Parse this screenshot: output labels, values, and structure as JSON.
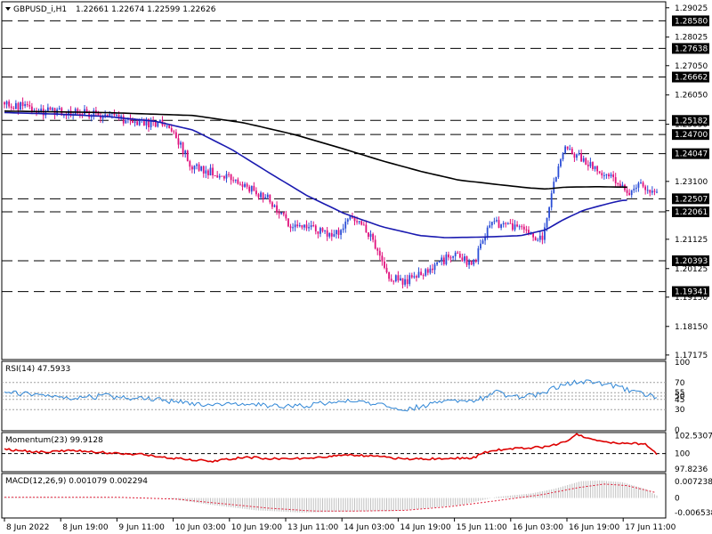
{
  "header": {
    "symbol": "GBPUSD_i,H1",
    "ohlc": "1.22661 1.22674 1.22599 1.22626"
  },
  "colors": {
    "bull": "#2a4dd6",
    "bear": "#e0107c",
    "ma_fast": "#1a1ab0",
    "ma_slow": "#000000",
    "rsi": "#2f86d6",
    "momentum": "#dd0000",
    "macd": "#e0203a",
    "hist": "#c0c0c0"
  },
  "chart_data": [
    {
      "type": "candlestick",
      "panel": "price",
      "ylim": [
        1.1705,
        1.292
      ],
      "y_ticks": [
        "1.29025",
        "1.28025",
        "1.27050",
        "1.26050",
        "1.25050",
        "1.23100",
        "1.22100",
        "1.21125",
        "1.20125",
        "1.19150",
        "1.18150",
        "1.17175"
      ],
      "levels": [
        "1.28580",
        "1.27638",
        "1.26662",
        "1.25182",
        "1.24700",
        "1.24047",
        "1.22507",
        "1.22061",
        "1.20393",
        "1.19341"
      ],
      "ma_fast": [
        [
          0,
          1.2545
        ],
        [
          20,
          1.254
        ],
        [
          40,
          1.2532
        ],
        [
          60,
          1.2515
        ],
        [
          75,
          1.2485
        ],
        [
          90,
          1.242
        ],
        [
          105,
          1.234
        ],
        [
          120,
          1.2262
        ],
        [
          135,
          1.22
        ],
        [
          150,
          1.2155
        ],
        [
          165,
          1.2125
        ],
        [
          175,
          1.2118
        ],
        [
          190,
          1.212
        ],
        [
          205,
          1.2125
        ],
        [
          215,
          1.2145
        ],
        [
          222,
          1.218
        ],
        [
          230,
          1.2212
        ],
        [
          240,
          1.2235
        ],
        [
          245,
          1.2245
        ],
        [
          249,
          1.2247
        ]
      ],
      "ma_slow": [
        [
          0,
          1.255
        ],
        [
          40,
          1.2545
        ],
        [
          75,
          1.2535
        ],
        [
          95,
          1.251
        ],
        [
          115,
          1.247
        ],
        [
          135,
          1.242
        ],
        [
          150,
          1.238
        ],
        [
          165,
          1.2345
        ],
        [
          180,
          1.2315
        ],
        [
          195,
          1.23
        ],
        [
          208,
          1.2288
        ],
        [
          215,
          1.2284
        ],
        [
          222,
          1.229
        ],
        [
          235,
          1.2292
        ],
        [
          249,
          1.229
        ]
      ],
      "anchors": [
        [
          0,
          1.258
        ],
        [
          15,
          1.255
        ],
        [
          40,
          1.254
        ],
        [
          60,
          1.251
        ],
        [
          72,
          1.2505
        ],
        [
          82,
          1.236
        ],
        [
          100,
          1.232
        ],
        [
          115,
          1.225
        ],
        [
          125,
          1.216
        ],
        [
          145,
          1.213
        ],
        [
          152,
          1.219
        ],
        [
          158,
          1.215
        ],
        [
          168,
          1.198
        ],
        [
          175,
          1.197
        ],
        [
          187,
          1.201
        ],
        [
          195,
          1.206
        ],
        [
          205,
          1.203
        ],
        [
          212,
          1.217
        ],
        [
          225,
          1.215
        ],
        [
          235,
          1.211
        ],
        [
          240,
          1.231
        ],
        [
          245,
          1.243
        ],
        [
          255,
          1.237
        ],
        [
          265,
          1.232
        ],
        [
          272,
          1.227
        ],
        [
          279,
          1.23
        ],
        [
          285,
          1.2263
        ]
      ],
      "x_ticks": [
        "8 Jun 2022",
        "8 Jun 19:00",
        "9 Jun 11:00",
        "10 Jun 03:00",
        "10 Jun 19:00",
        "13 Jun 11:00",
        "14 Jun 03:00",
        "14 Jun 19:00",
        "15 Jun 11:00",
        "16 Jun 03:00",
        "16 Jun 19:00",
        "17 Jun 11:00"
      ]
    },
    {
      "type": "line",
      "panel": "rsi",
      "title": "RSI(14) 47.5933",
      "ylim": [
        0,
        100
      ],
      "y_ticks": [
        "100",
        "70",
        "55",
        "50",
        "45",
        "30",
        "0"
      ],
      "levels": [
        70,
        55,
        50,
        45,
        30
      ],
      "anchors": [
        [
          0,
          55
        ],
        [
          15,
          52
        ],
        [
          30,
          48
        ],
        [
          45,
          50
        ],
        [
          60,
          46
        ],
        [
          75,
          42
        ],
        [
          90,
          35
        ],
        [
          105,
          40
        ],
        [
          120,
          34
        ],
        [
          135,
          37
        ],
        [
          150,
          44
        ],
        [
          160,
          40
        ],
        [
          175,
          30
        ],
        [
          190,
          40
        ],
        [
          205,
          42
        ],
        [
          215,
          55
        ],
        [
          225,
          48
        ],
        [
          235,
          54
        ],
        [
          245,
          68
        ],
        [
          255,
          73
        ],
        [
          265,
          65
        ],
        [
          275,
          57
        ],
        [
          285,
          47.6
        ]
      ]
    },
    {
      "type": "line",
      "panel": "momentum",
      "title": "Momentum(23) 99.9128",
      "ylim": [
        97.55,
        102.85
      ],
      "y_ticks": [
        "102.5307",
        "100",
        "97.8236"
      ],
      "levels": [
        100
      ],
      "anchors": [
        [
          0,
          100.6
        ],
        [
          15,
          100.2
        ],
        [
          30,
          100.4
        ],
        [
          45,
          100.1
        ],
        [
          60,
          99.9
        ],
        [
          75,
          99.3
        ],
        [
          90,
          98.9
        ],
        [
          105,
          99.5
        ],
        [
          120,
          99.2
        ],
        [
          135,
          99.4
        ],
        [
          150,
          99.8
        ],
        [
          160,
          99.7
        ],
        [
          175,
          99.2
        ],
        [
          190,
          99.3
        ],
        [
          205,
          99.4
        ],
        [
          210,
          100.2
        ],
        [
          220,
          100.7
        ],
        [
          235,
          100.9
        ],
        [
          245,
          101.6
        ],
        [
          250,
          102.7
        ],
        [
          260,
          101.7
        ],
        [
          270,
          101.5
        ],
        [
          280,
          101.3
        ],
        [
          285,
          99.9
        ]
      ]
    },
    {
      "type": "bar+line",
      "panel": "macd",
      "title": "MACD(12,26,9) 0.001079 0.002294",
      "ylim": [
        -0.0085,
        0.0105
      ],
      "y_ticks": [
        "0.007238",
        "0",
        "-0.006538"
      ],
      "hist_anchors": [
        [
          0,
          0.0004
        ],
        [
          40,
          0.0003
        ],
        [
          70,
          0.0
        ],
        [
          90,
          -0.003
        ],
        [
          110,
          -0.0055
        ],
        [
          130,
          -0.0065
        ],
        [
          150,
          -0.006
        ],
        [
          170,
          -0.0058
        ],
        [
          185,
          -0.0045
        ],
        [
          200,
          -0.003
        ],
        [
          215,
          0.0005
        ],
        [
          230,
          0.002
        ],
        [
          240,
          0.004
        ],
        [
          252,
          0.0075
        ],
        [
          260,
          0.0078
        ],
        [
          270,
          0.007
        ],
        [
          280,
          0.004
        ],
        [
          285,
          0.0011
        ]
      ],
      "signal_anchors": [
        [
          0,
          0.0003
        ],
        [
          50,
          0.0003
        ],
        [
          75,
          -0.0005
        ],
        [
          95,
          -0.0025
        ],
        [
          115,
          -0.0045
        ],
        [
          135,
          -0.0058
        ],
        [
          155,
          -0.0058
        ],
        [
          175,
          -0.0055
        ],
        [
          195,
          -0.0038
        ],
        [
          215,
          -0.0012
        ],
        [
          235,
          0.0015
        ],
        [
          250,
          0.0045
        ],
        [
          262,
          0.0062
        ],
        [
          272,
          0.0055
        ],
        [
          285,
          0.0023
        ]
      ]
    }
  ]
}
